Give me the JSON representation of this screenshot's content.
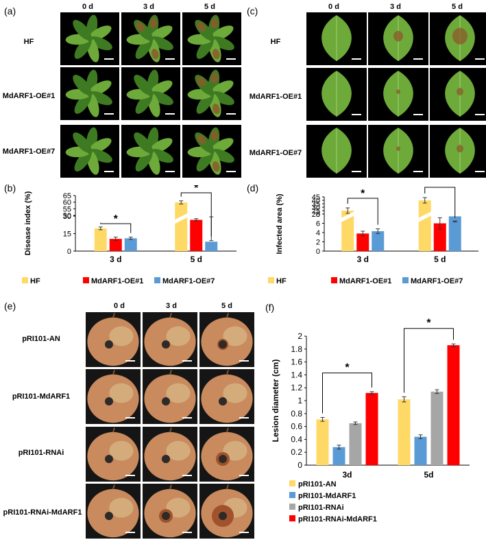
{
  "panels": {
    "a": {
      "label": "(a)",
      "columns": [
        "0 d",
        "3 d",
        "5 d"
      ],
      "rows": [
        "HF",
        "MdARF1-OE#1",
        "MdARF1-OE#7"
      ]
    },
    "c": {
      "label": "(c)",
      "columns": [
        "0 d",
        "3 d",
        "5 d"
      ],
      "rows": [
        "HF",
        "MdARF1-OE#1",
        "MdARF1-OE#7"
      ]
    },
    "e": {
      "label": "(e)",
      "columns": [
        "0 d",
        "3 d",
        "5 d"
      ],
      "rows": [
        "pRI101-AN",
        "pRI101-MdARF1",
        "pRI101-RNAi",
        "pRI101-RNAi-MdARF1"
      ]
    },
    "b": {
      "label": "(b)"
    },
    "d": {
      "label": "(d)"
    },
    "f": {
      "label": "(f)"
    }
  },
  "colors": {
    "hf": "#FFD966",
    "oe1": "#FF0000",
    "oe7": "#5B9BD5",
    "an": "#FFD966",
    "mdarf1": "#5B9BD5",
    "rnai": "#A6A6A6",
    "rnai_mdarf1": "#FF0000",
    "leaf": "#6DAA3A",
    "leaf_dark": "#3E7A22",
    "lesion": "#8B5A2B",
    "fruit": "#C98A5E",
    "fruit_light": "#DCC38F",
    "fruit_spot": "#2E2A28"
  },
  "chart_data": [
    {
      "id": "b",
      "type": "bar",
      "ylabel": "Disease index (%)",
      "categories": [
        "3 d",
        "5 d"
      ],
      "broken_axis": true,
      "ytick_labels": [
        "0",
        "15",
        "30",
        "50",
        "55",
        "60",
        "65"
      ],
      "significance": "*",
      "series": [
        {
          "name": "HF",
          "values": [
            19.5,
            59.8
          ],
          "errors": [
            1.2,
            1.2
          ]
        },
        {
          "name": "MdARF1-OE#1",
          "values": [
            10.5,
            26.8
          ],
          "errors": [
            1.5,
            1.0
          ]
        },
        {
          "name": "MdARF1-OE#7",
          "values": [
            11.0,
            30.2
          ],
          "errors": [
            1.0,
            0.8
          ]
        }
      ]
    },
    {
      "id": "d",
      "type": "bar",
      "ylabel": "Infected area (%)",
      "categories": [
        "3 d",
        "5 d"
      ],
      "broken_axis": true,
      "ytick_labels": [
        "0",
        "2",
        "4",
        "6",
        "8",
        "20",
        "25",
        "30",
        "35",
        "40",
        "45"
      ],
      "significance": "*",
      "series": [
        {
          "name": "HF",
          "values": [
            25.0,
            40.0
          ],
          "errors": [
            4.0,
            4.0
          ]
        },
        {
          "name": "MdARF1-OE#1",
          "values": [
            3.8,
            6.0
          ],
          "errors": [
            0.5,
            1.2
          ]
        },
        {
          "name": "MdARF1-OE#7",
          "values": [
            4.3,
            7.5
          ],
          "errors": [
            0.5,
            1.0
          ]
        }
      ]
    },
    {
      "id": "f",
      "type": "bar",
      "ylabel": "Lesion diameter (cm)",
      "categories": [
        "3d",
        "5d"
      ],
      "ytick_labels": [
        "0",
        "0.2",
        "0.4",
        "0.6",
        "0.8",
        "1",
        "1.2",
        "1.4",
        "1.6",
        "1.8",
        "2"
      ],
      "ylim": [
        0,
        2
      ],
      "significance": "*",
      "series": [
        {
          "name": "pRI101-AN",
          "values": [
            0.71,
            1.02
          ],
          "errors": [
            0.03,
            0.04
          ]
        },
        {
          "name": "pRI101-MdARF1",
          "values": [
            0.28,
            0.44
          ],
          "errors": [
            0.03,
            0.03
          ]
        },
        {
          "name": "pRI101-RNAi",
          "values": [
            0.65,
            1.14
          ],
          "errors": [
            0.02,
            0.03
          ]
        },
        {
          "name": "pRI101-RNAi-MdARF1",
          "values": [
            1.12,
            1.86
          ],
          "errors": [
            0.02,
            0.02
          ]
        }
      ]
    }
  ]
}
